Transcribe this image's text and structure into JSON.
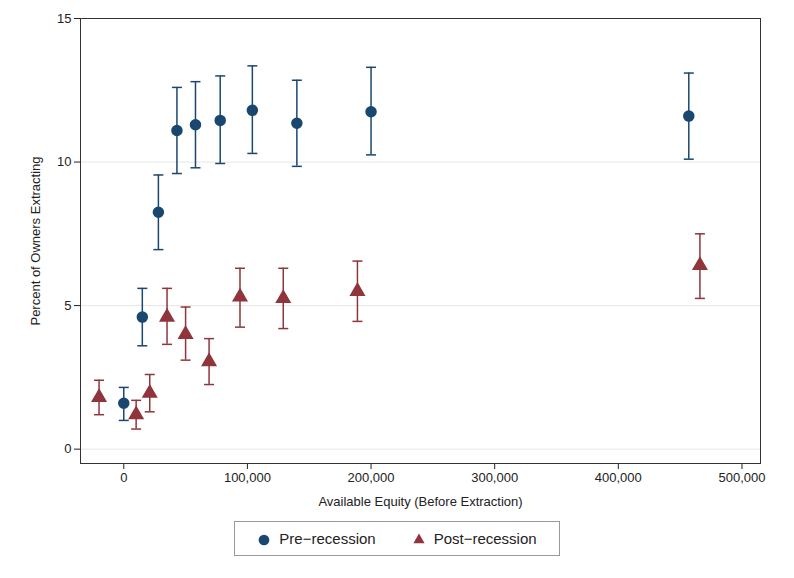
{
  "chart_data": {
    "type": "scatter",
    "x_label": "Available Equity (Before Extraction)",
    "y_label": "Percent of Owners Extracting",
    "xlim": [
      -35000,
      515000
    ],
    "ylim": [
      -0.5,
      15
    ],
    "xticks": [
      0,
      {
        "value": 100000,
        "label": "100,000"
      },
      {
        "value": 200000,
        "label": "200,000"
      },
      {
        "value": 300000,
        "label": "300,000"
      },
      {
        "value": 400000,
        "label": "400,000"
      },
      {
        "value": 500000,
        "label": "500,000"
      }
    ],
    "yticks": [
      0,
      5,
      10,
      15
    ],
    "grid": true,
    "legend": "bottom",
    "series": [
      {
        "name": "Pre−recession",
        "color": "#1a476f",
        "marker": "circle",
        "x": [
          0,
          15000,
          28000,
          43000,
          58000,
          78000,
          104000,
          140000,
          200000,
          457000
        ],
        "values": [
          1.6,
          4.6,
          8.25,
          11.1,
          11.3,
          11.45,
          11.8,
          11.35,
          11.75,
          11.6
        ],
        "error_low": [
          1.0,
          3.6,
          6.95,
          9.6,
          9.8,
          9.95,
          10.3,
          9.85,
          10.25,
          10.1
        ],
        "error_high": [
          2.15,
          5.6,
          9.55,
          12.6,
          12.8,
          13.0,
          13.35,
          12.85,
          13.3,
          13.1
        ]
      },
      {
        "name": "Post−recession",
        "color": "#90353b",
        "marker": "triangle",
        "x": [
          -20000,
          10000,
          21000,
          35000,
          50000,
          69000,
          94000,
          129000,
          189000,
          466000
        ],
        "values": [
          1.8,
          1.2,
          1.95,
          4.6,
          4.0,
          3.05,
          5.3,
          5.25,
          5.5,
          6.4
        ],
        "error_low": [
          1.2,
          0.7,
          1.3,
          3.65,
          3.1,
          2.25,
          4.25,
          4.2,
          4.45,
          5.25
        ],
        "error_high": [
          2.4,
          1.7,
          2.6,
          5.6,
          4.95,
          3.85,
          6.3,
          6.3,
          6.55,
          7.5
        ]
      }
    ]
  }
}
